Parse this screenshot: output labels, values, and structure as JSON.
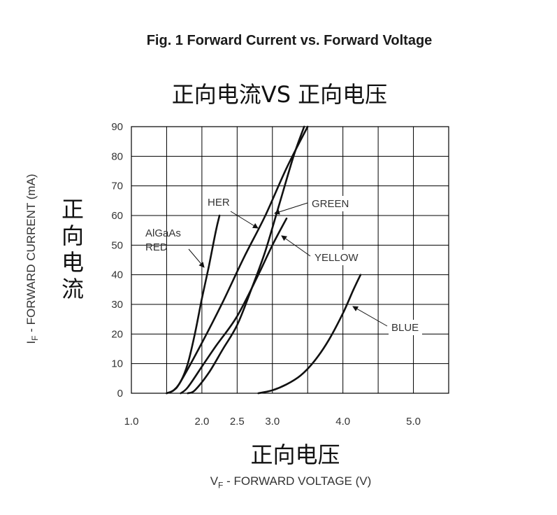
{
  "figure_title": "Fig. 1  Forward Current vs. Forward Voltage",
  "cn_title": "正向电流VS 正向电压",
  "cn_ylabel_chars": [
    "正",
    "向",
    "电",
    "流"
  ],
  "cn_xlabel": "正向电压",
  "en_ylabel": {
    "main": "I",
    "sub": "F",
    "rest": " - FORWARD CURRENT (mA)"
  },
  "en_xlabel": {
    "main": "V",
    "sub": "F",
    "rest": " - FORWARD VOLTAGE (V)"
  },
  "chart_data": {
    "type": "line",
    "xlabel": "VF - FORWARD VOLTAGE (V)",
    "ylabel": "IF - FORWARD CURRENT (mA)",
    "xlim": [
      1.0,
      5.5
    ],
    "ylim": [
      0,
      90
    ],
    "x_ticks": [
      "1.0",
      "2.0",
      "2.5",
      "3.0",
      "4.0",
      "5.0"
    ],
    "x_tick_values": [
      1.0,
      2.0,
      2.5,
      3.0,
      4.0,
      5.0
    ],
    "y_ticks": [
      0,
      10,
      20,
      30,
      40,
      50,
      60,
      70,
      80,
      90
    ],
    "grid": true,
    "series": [
      {
        "name": "AlGaAs RED",
        "label_lines": [
          "AlGaAs",
          "RED"
        ],
        "x": [
          1.5,
          1.6,
          1.7,
          1.8,
          1.9,
          2.0,
          2.1,
          2.2,
          2.25
        ],
        "y": [
          0,
          1,
          4,
          10,
          20,
          32,
          43,
          55,
          60
        ]
      },
      {
        "name": "HER",
        "label_lines": [
          "HER"
        ],
        "x": [
          1.5,
          1.6,
          1.7,
          2.0,
          2.3,
          2.6,
          2.9,
          3.2,
          3.5
        ],
        "y": [
          0,
          1,
          4,
          17,
          31,
          46,
          60,
          76,
          90
        ]
      },
      {
        "name": "GREEN",
        "label_lines": [
          "GREEN"
        ],
        "x": [
          1.8,
          1.9,
          2.1,
          2.3,
          2.5,
          2.7,
          2.9,
          3.1,
          3.3,
          3.45
        ],
        "y": [
          0,
          1,
          7,
          15,
          23,
          35,
          48,
          64,
          80,
          90
        ]
      },
      {
        "name": "YELLOW",
        "label_lines": [
          "YELLOW"
        ],
        "x": [
          1.7,
          1.8,
          2.0,
          2.2,
          2.5,
          2.8,
          3.0,
          3.2
        ],
        "y": [
          0,
          2,
          9,
          16,
          26,
          40,
          50,
          59
        ]
      },
      {
        "name": "BLUE",
        "label_lines": [
          "BLUE"
        ],
        "x": [
          2.8,
          3.0,
          3.2,
          3.4,
          3.6,
          3.8,
          4.0,
          4.15,
          4.25
        ],
        "y": [
          0,
          1,
          3,
          6,
          11,
          18,
          27,
          35,
          40
        ]
      }
    ]
  }
}
